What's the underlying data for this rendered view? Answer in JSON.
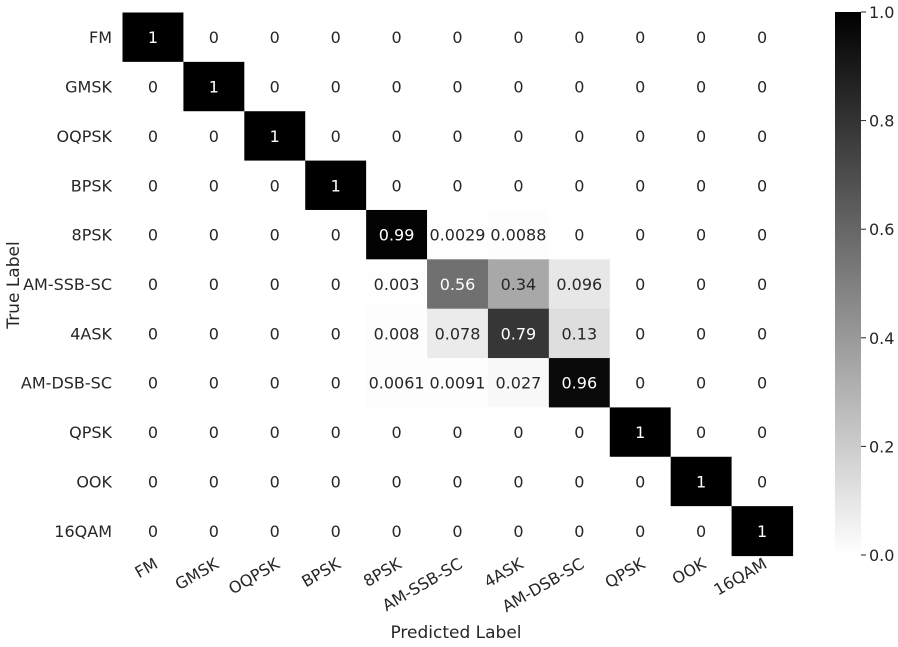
{
  "chart_data": {
    "type": "heatmap",
    "title": "",
    "xlabel": "Predicted Label",
    "ylabel": "True Label",
    "x_categories": [
      "FM",
      "GMSK",
      "OQPSK",
      "BPSK",
      "8PSK",
      "AM-SSB-SC",
      "4ASK",
      "AM-DSB-SC",
      "QPSK",
      "OOK",
      "16QAM"
    ],
    "y_categories": [
      "FM",
      "GMSK",
      "OQPSK",
      "BPSK",
      "8PSK",
      "AM-SSB-SC",
      "4ASK",
      "AM-DSB-SC",
      "QPSK",
      "OOK",
      "16QAM"
    ],
    "values": [
      [
        1,
        0,
        0,
        0,
        0,
        0,
        0,
        0,
        0,
        0,
        0
      ],
      [
        0,
        1,
        0,
        0,
        0,
        0,
        0,
        0,
        0,
        0,
        0
      ],
      [
        0,
        0,
        1,
        0,
        0,
        0,
        0,
        0,
        0,
        0,
        0
      ],
      [
        0,
        0,
        0,
        1,
        0,
        0,
        0,
        0,
        0,
        0,
        0
      ],
      [
        0,
        0,
        0,
        0,
        0.99,
        0.0029,
        0.0088,
        0,
        0,
        0,
        0
      ],
      [
        0,
        0,
        0,
        0,
        0.003,
        0.56,
        0.34,
        0.096,
        0,
        0,
        0
      ],
      [
        0,
        0,
        0,
        0,
        0.008,
        0.078,
        0.79,
        0.13,
        0,
        0,
        0
      ],
      [
        0,
        0,
        0,
        0,
        0.0061,
        0.0091,
        0.027,
        0.96,
        0,
        0,
        0
      ],
      [
        0,
        0,
        0,
        0,
        0,
        0,
        0,
        0,
        1,
        0,
        0
      ],
      [
        0,
        0,
        0,
        0,
        0,
        0,
        0,
        0,
        0,
        1,
        0
      ],
      [
        0,
        0,
        0,
        0,
        0,
        0,
        0,
        0,
        0,
        0,
        1
      ]
    ],
    "colormap": "Greys",
    "color_low": "#ffffff",
    "color_high": "#000000",
    "vmin": 0,
    "vmax": 1,
    "colorbar_ticks": [
      "0.0",
      "0.2",
      "0.4",
      "0.6",
      "0.8",
      "1.0"
    ],
    "legend": "colorbar-right",
    "grid": false
  }
}
